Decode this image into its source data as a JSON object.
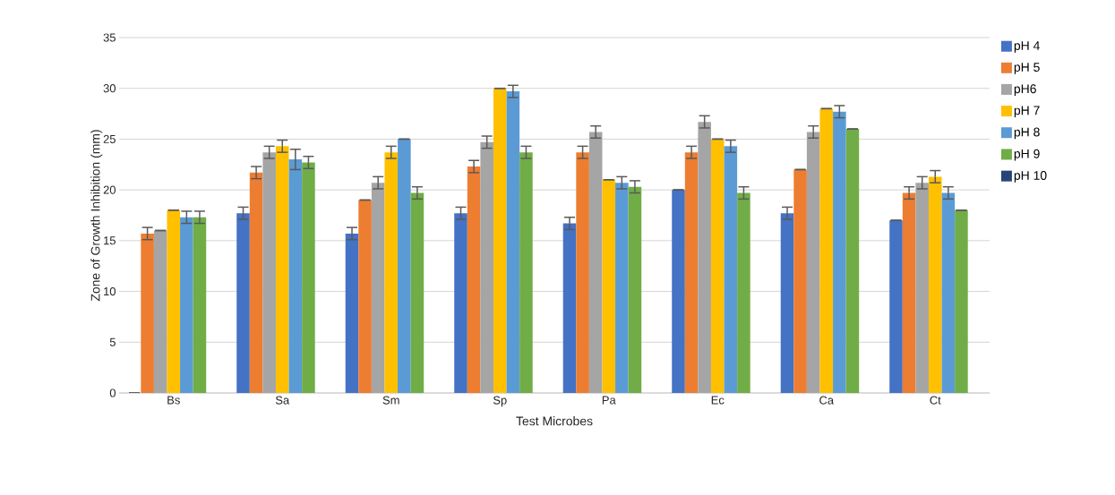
{
  "chart_data": {
    "type": "bar",
    "xlabel": "Test Microbes",
    "ylabel": "Zone of Growth Inhibition (mm)",
    "categories": [
      "Bs",
      "Sa",
      "Sm",
      "Sp",
      "Pa",
      "Ec",
      "Ca",
      "Ct"
    ],
    "ylim": [
      0,
      35
    ],
    "yticks": [
      0,
      5,
      10,
      15,
      20,
      25,
      30,
      35
    ],
    "grid": "y",
    "legend": "right",
    "series": [
      {
        "name": "pH 4",
        "color": "#4472c4",
        "values": [
          0,
          17.7,
          15.7,
          17.7,
          16.7,
          20,
          17.7,
          17
        ],
        "errors": [
          0,
          0.6,
          0.6,
          0.6,
          0.6,
          0,
          0.6,
          0
        ]
      },
      {
        "name": "pH 5",
        "color": "#ed7d31",
        "values": [
          15.7,
          21.7,
          19,
          22.3,
          23.7,
          23.7,
          22,
          19.7
        ],
        "errors": [
          0.6,
          0.6,
          0,
          0.6,
          0.6,
          0.6,
          0,
          0.6
        ]
      },
      {
        "name": "pH6",
        "color": "#a5a5a5",
        "values": [
          16,
          23.7,
          20.7,
          24.7,
          25.7,
          26.7,
          25.7,
          20.7
        ],
        "errors": [
          0,
          0.6,
          0.6,
          0.6,
          0.6,
          0.6,
          0.6,
          0.6
        ]
      },
      {
        "name": "pH 7",
        "color": "#ffc000",
        "values": [
          18,
          24.3,
          23.7,
          30,
          21,
          25,
          28,
          21.3
        ],
        "errors": [
          0,
          0.6,
          0.6,
          0,
          0,
          0,
          0,
          0.6
        ]
      },
      {
        "name": "pH 8",
        "color": "#5b9bd5",
        "values": [
          17.3,
          23,
          25,
          29.7,
          20.7,
          24.3,
          27.7,
          19.7
        ],
        "errors": [
          0.6,
          1,
          0,
          0.6,
          0.6,
          0.6,
          0.6,
          0.6
        ]
      },
      {
        "name": "pH 9",
        "color": "#70ad47",
        "values": [
          17.3,
          22.7,
          19.7,
          23.7,
          20.3,
          19.7,
          26,
          18
        ],
        "errors": [
          0.6,
          0.6,
          0.6,
          0.6,
          0.6,
          0.6,
          0,
          0
        ]
      },
      {
        "name": "pH 10",
        "color": "#264478",
        "values": [
          0,
          0,
          0,
          0,
          0,
          0,
          0,
          0
        ]
      }
    ]
  }
}
